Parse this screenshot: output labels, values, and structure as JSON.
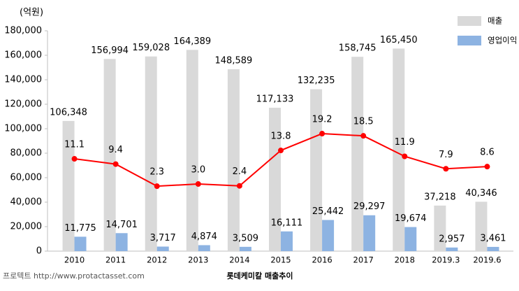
{
  "chart_data": {
    "type": "bar",
    "unit_label": "(억원)",
    "caption": "롯데케미칼 매출추이",
    "source": "프로텍트 http://www.protactasset.com",
    "categories": [
      "2010",
      "2011",
      "2012",
      "2013",
      "2014",
      "2015",
      "2016",
      "2017",
      "2018",
      "2019.3",
      "2019.6"
    ],
    "series": [
      {
        "name": "매출",
        "type": "bar",
        "color": "#d9d9d9",
        "values": [
          106348,
          156994,
          159028,
          164389,
          148589,
          117133,
          132235,
          158745,
          165450,
          37218,
          40346
        ],
        "value_labels": [
          "106,348",
          "156,994",
          "159,028",
          "164,389",
          "148,589",
          "117,133",
          "132,235",
          "158,745",
          "165,450",
          "37,218",
          "40,346"
        ]
      },
      {
        "name": "영업이익",
        "type": "bar",
        "color": "#8db3e2",
        "values": [
          11775,
          14701,
          3717,
          4874,
          3509,
          16111,
          25442,
          29297,
          19674,
          2957,
          3461
        ],
        "value_labels": [
          "11,775",
          "14,701",
          "3,717",
          "4,874",
          "3,509",
          "16,111",
          "25,442",
          "29,297",
          "19,674",
          "2,957",
          "3,461"
        ]
      },
      {
        "type": "line",
        "axis": "y2",
        "color": "#ff0000",
        "values": [
          11.1,
          9.4,
          2.3,
          3.0,
          2.4,
          13.8,
          19.2,
          18.5,
          11.9,
          7.9,
          8.6
        ],
        "value_labels": [
          "11.1",
          "9.4",
          "2.3",
          "3.0",
          "2.4",
          "13.8",
          "19.2",
          "18.5",
          "11.9",
          "7.9",
          "8.6"
        ]
      }
    ],
    "ylim": [
      0,
      180000
    ],
    "yticks": [
      0,
      {
        "value": 20000,
        "label": "20,000"
      },
      {
        "value": 40000,
        "label": "40,000"
      },
      {
        "value": 60000,
        "label": "60,000"
      },
      {
        "value": 80000,
        "label": "80,000"
      },
      {
        "value": 100000,
        "label": "100,000"
      },
      {
        "value": 120000,
        "label": "120,000"
      },
      {
        "value": 140000,
        "label": "140,000"
      },
      {
        "value": 160000,
        "label": "160,000"
      },
      {
        "value": 180000,
        "label": "180,000"
      }
    ],
    "y2lim": [
      -18.6,
      52.3
    ],
    "legend": "top-right"
  }
}
